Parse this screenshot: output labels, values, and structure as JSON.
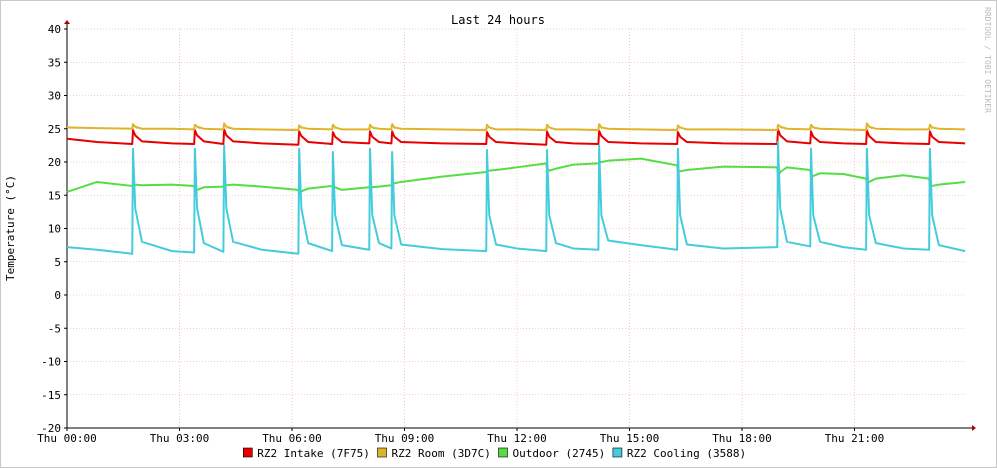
{
  "chart_data": {
    "type": "line",
    "title": "Last 24 hours",
    "y_label": "Temperature (°C)",
    "watermark": "RRDTOOL / TOBI OETIKER",
    "grid": true,
    "legend": "bottom",
    "xlim": [
      0,
      24
    ],
    "xticks": [
      {
        "value": 0,
        "label": "Thu 00:00"
      },
      {
        "value": 3,
        "label": "Thu 03:00"
      },
      {
        "value": 6,
        "label": "Thu 06:00"
      },
      {
        "value": 9,
        "label": "Thu 09:00"
      },
      {
        "value": 12,
        "label": "Thu 12:00"
      },
      {
        "value": 15,
        "label": "Thu 15:00"
      },
      {
        "value": 18,
        "label": "Thu 18:00"
      },
      {
        "value": 21,
        "label": "Thu 21:00"
      }
    ],
    "ylim": [
      -20,
      40
    ],
    "yticks": [
      -20,
      -15,
      -10,
      -5,
      0,
      5,
      10,
      15,
      20,
      25,
      30,
      35,
      40
    ],
    "x": [
      0,
      0.8,
      1.74,
      1.76,
      1.82,
      2.0,
      2.8,
      3.39,
      3.41,
      3.47,
      3.65,
      4.17,
      4.19,
      4.25,
      4.43,
      5.2,
      6.17,
      6.19,
      6.25,
      6.43,
      7.07,
      7.09,
      7.15,
      7.33,
      8.06,
      8.08,
      8.14,
      8.32,
      8.65,
      8.67,
      8.73,
      8.91,
      10.0,
      11.18,
      11.2,
      11.26,
      11.44,
      12.0,
      12.78,
      12.8,
      12.86,
      13.04,
      13.5,
      14.17,
      14.19,
      14.25,
      14.43,
      15.3,
      16.27,
      16.29,
      16.35,
      16.53,
      17.5,
      18.94,
      18.96,
      19.02,
      19.2,
      19.82,
      19.84,
      19.9,
      20.08,
      20.7,
      21.31,
      21.33,
      21.39,
      21.57,
      22.3,
      22.99,
      23.01,
      23.07,
      23.25,
      23.95
    ],
    "series": [
      {
        "name": "RZ2 Intake (7F75)",
        "color": "#e80000",
        "values": [
          23.5,
          23,
          22.7,
          24.8,
          24,
          23.1,
          22.8,
          22.7,
          24.8,
          24,
          23.1,
          22.7,
          24.9,
          24,
          23.1,
          22.8,
          22.6,
          24.6,
          23.9,
          23,
          22.7,
          24.5,
          23.8,
          23,
          22.8,
          24.6,
          23.8,
          23,
          22.8,
          24.6,
          23.8,
          23,
          22.8,
          22.7,
          24.5,
          23.8,
          23,
          22.8,
          22.6,
          24.6,
          23.8,
          23,
          22.8,
          22.7,
          24.7,
          23.9,
          23,
          22.8,
          22.7,
          24.5,
          23.8,
          23,
          22.8,
          22.7,
          24.9,
          24,
          23.1,
          22.8,
          24.6,
          23.8,
          23,
          22.8,
          22.7,
          24.8,
          23.9,
          23,
          22.8,
          22.7,
          24.6,
          23.8,
          23,
          22.8
        ]
      },
      {
        "name": "RZ2 Room (3D7C)",
        "color": "#e0b42a",
        "values": [
          25.2,
          25.1,
          25,
          25.7,
          25.3,
          25,
          25,
          24.9,
          25.6,
          25.3,
          25,
          24.9,
          25.8,
          25.3,
          25,
          24.9,
          24.8,
          25.5,
          25.2,
          25,
          24.9,
          25.6,
          25.2,
          24.9,
          24.9,
          25.6,
          25.2,
          25,
          24.9,
          25.7,
          25.2,
          25,
          24.9,
          24.8,
          25.6,
          25.2,
          24.9,
          24.9,
          24.8,
          25.6,
          25.2,
          24.9,
          24.9,
          24.8,
          25.7,
          25.2,
          25,
          24.9,
          24.8,
          25.5,
          25.2,
          24.9,
          24.9,
          24.8,
          25.6,
          25.3,
          25,
          24.9,
          25.6,
          25.2,
          25,
          24.9,
          24.8,
          25.8,
          25.3,
          25,
          24.9,
          24.9,
          25.6,
          25.2,
          25,
          24.9
        ]
      },
      {
        "name": "Outdoor (2745)",
        "color": "#55dd44",
        "values": [
          15.5,
          17,
          16.4,
          16.6,
          16.6,
          16.5,
          16.6,
          16.4,
          15.5,
          15.8,
          16.2,
          16.3,
          16.5,
          16.5,
          16.6,
          16.3,
          15.8,
          15.3,
          15.6,
          16,
          16.4,
          16.2,
          16.2,
          15.8,
          16.2,
          16.4,
          16.2,
          16.3,
          16.5,
          16.6,
          16.8,
          17,
          17.8,
          18.5,
          18.7,
          18.7,
          18.8,
          19.2,
          19.8,
          19,
          18.7,
          19,
          19.6,
          19.8,
          20,
          20,
          20.2,
          20.5,
          19.5,
          18.5,
          18.6,
          18.8,
          19.3,
          19.2,
          17.8,
          18.5,
          19.2,
          18.8,
          17.6,
          17.9,
          18.3,
          18.2,
          17.5,
          16.8,
          17,
          17.5,
          18,
          17.5,
          16.5,
          16.4,
          16.6,
          17
        ]
      },
      {
        "name": "RZ2 Cooling (3588)",
        "color": "#44ccdd",
        "values": [
          7.2,
          6.8,
          6.2,
          22,
          13,
          8,
          6.6,
          6.4,
          22,
          13,
          7.8,
          6.5,
          22.5,
          13,
          8,
          6.8,
          6.2,
          22,
          13,
          7.8,
          6.6,
          21.5,
          12,
          7.5,
          6.8,
          22,
          12,
          7.8,
          7,
          21.5,
          12,
          7.6,
          6.9,
          6.6,
          21.8,
          12,
          7.6,
          7,
          6.6,
          21.8,
          12,
          7.8,
          7,
          6.8,
          22.5,
          12,
          8.2,
          7.5,
          6.8,
          22,
          12,
          7.6,
          7,
          7.2,
          23,
          13,
          8,
          7.3,
          22,
          12,
          8,
          7.2,
          6.8,
          22,
          12,
          7.8,
          7,
          6.8,
          22,
          12,
          7.5,
          6.6
        ]
      }
    ]
  }
}
